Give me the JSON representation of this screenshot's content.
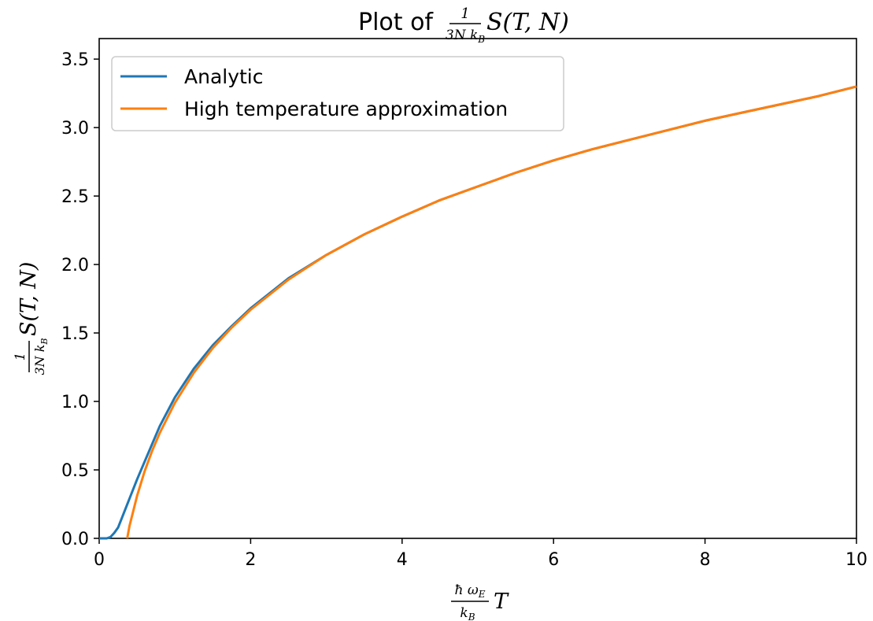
{
  "chart_data": {
    "type": "line",
    "title": {
      "prefix": "Plot of",
      "frac_num": "1",
      "frac_den": "3N k",
      "frac_den_sub": "B",
      "func": "S(T, N)"
    },
    "xlabel": {
      "frac_num": "ħ ω",
      "frac_num_sub": "E",
      "frac_den": "k",
      "frac_den_sub": "B",
      "var": "T"
    },
    "ylabel": {
      "frac_num": "1",
      "frac_den": "3N k",
      "frac_den_sub": "B",
      "func": "S(T, N)"
    },
    "xlim": [
      0,
      10
    ],
    "ylim": [
      0,
      3.65
    ],
    "xticks": [
      0,
      2,
      4,
      6,
      8,
      10
    ],
    "xtick_labels": [
      "0",
      "2",
      "4",
      "6",
      "8",
      "10"
    ],
    "yticks": [
      0.0,
      0.5,
      1.0,
      1.5,
      2.0,
      2.5,
      3.0,
      3.5
    ],
    "ytick_labels": [
      "0.0",
      "0.5",
      "1.0",
      "1.5",
      "2.0",
      "2.5",
      "3.0",
      "3.5"
    ],
    "grid": false,
    "legend_position": "top-left",
    "series": [
      {
        "name": "Analytic",
        "color": "#1f77b4",
        "x": [
          0,
          0.1,
          0.15,
          0.2,
          0.25,
          0.3,
          0.4,
          0.5,
          0.6,
          0.8,
          1.0,
          1.25,
          1.5,
          1.75,
          2.0,
          2.5,
          3.0,
          3.5,
          4.0,
          4.5,
          5.0,
          5.5,
          6.0,
          6.5,
          7.0,
          7.5,
          8.0,
          8.5,
          9.0,
          9.5,
          10.0
        ],
        "y": [
          0,
          0.0,
          0.01,
          0.04,
          0.08,
          0.15,
          0.29,
          0.43,
          0.56,
          0.82,
          1.03,
          1.24,
          1.41,
          1.55,
          1.68,
          1.9,
          2.07,
          2.22,
          2.35,
          2.47,
          2.57,
          2.67,
          2.76,
          2.84,
          2.91,
          2.98,
          3.05,
          3.11,
          3.17,
          3.23,
          3.3
        ]
      },
      {
        "name": "High temperature approximation",
        "color": "#ff7f0e",
        "x": [
          0.37,
          0.4,
          0.45,
          0.5,
          0.6,
          0.7,
          0.8,
          1.0,
          1.25,
          1.5,
          1.75,
          2.0,
          2.5,
          3.0,
          3.5,
          4.0,
          4.5,
          5.0,
          5.5,
          6.0,
          6.5,
          7.0,
          7.5,
          8.0,
          8.5,
          9.0,
          9.5,
          10.0
        ],
        "y": [
          0,
          0.09,
          0.2,
          0.31,
          0.49,
          0.64,
          0.77,
          0.99,
          1.21,
          1.39,
          1.54,
          1.67,
          1.89,
          2.07,
          2.22,
          2.35,
          2.47,
          2.57,
          2.67,
          2.76,
          2.84,
          2.91,
          2.98,
          3.05,
          3.11,
          3.17,
          3.23,
          3.3
        ]
      }
    ]
  }
}
